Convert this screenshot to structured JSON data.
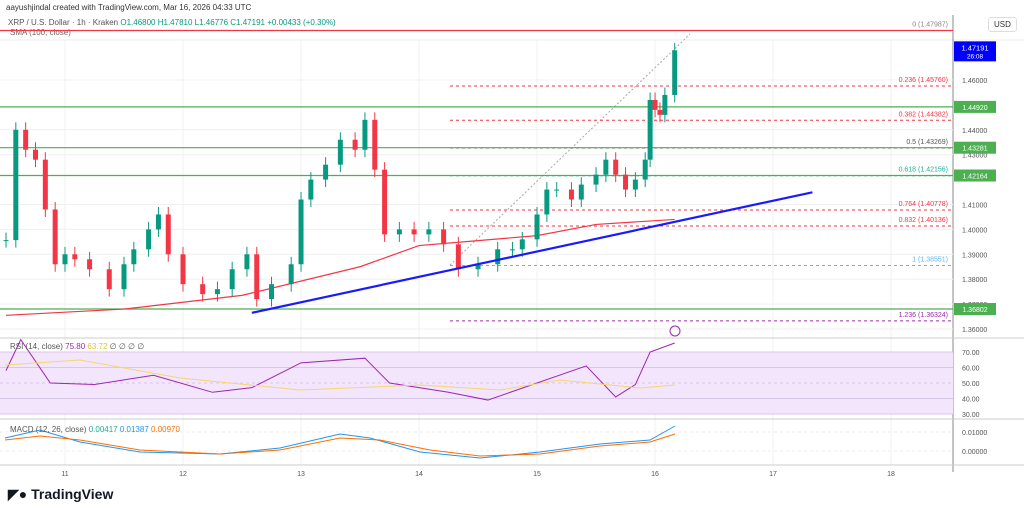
{
  "header": {
    "credit": "aayushjindal created with TradingView.com, Mar 16, 2026 04:33 UTC",
    "symbol": "XRP / U.S. Dollar · 1h · Kraken",
    "o": "O1.46800",
    "h": "H1.47810",
    "l": "L1.46776",
    "c": "C1.47191",
    "chg": "+0.00433 (+0.30%)",
    "sma": "SMA (100, close)"
  },
  "currency": "USD",
  "price_label": {
    "value": "1.47191",
    "countdown": "26:08",
    "color": "#0000ff"
  },
  "levels": [
    {
      "value": "1.44920",
      "price": 1.4492
    },
    {
      "value": "1.43281",
      "price": 1.43281
    },
    {
      "value": "1.42164",
      "price": 1.42164
    },
    {
      "value": "1.36802",
      "price": 1.36802
    }
  ],
  "fib": [
    {
      "label": "0 (1.47987)",
      "price": 1.47987,
      "color": "#888888"
    },
    {
      "label": "0.236 (1.45760)",
      "price": 1.4576,
      "color": "#f23645"
    },
    {
      "label": "0.382 (1.44382)",
      "price": 1.44382,
      "color": "#f23645"
    },
    {
      "label": "0.5 (1.43269)",
      "price": 1.43269,
      "color": "#555555"
    },
    {
      "label": "0.618 (1.42156)",
      "price": 1.42156,
      "color": "#22ab94"
    },
    {
      "label": "0.764 (1.40778)",
      "price": 1.40778,
      "color": "#f23645"
    },
    {
      "label": "0.832 (1.40136)",
      "price": 1.40136,
      "color": "#f23645"
    },
    {
      "label": "1 (1.38551)",
      "price": 1.38551,
      "color": "#64b5f6"
    },
    {
      "label": "1.236 (1.36324)",
      "price": 1.36324,
      "color": "#9c27b0"
    }
  ],
  "price_ticks": [
    "1.46000",
    "1.44000",
    "1.43000",
    "1.41000",
    "1.40000",
    "1.39000",
    "1.38000",
    "1.37000",
    "1.36000"
  ],
  "rsi": {
    "label": "RSI (14, close)",
    "v1": "75.80",
    "v2": "63.72",
    "nulls": "∅ ∅ ∅ ∅",
    "ticks": [
      "70.00",
      "60.00",
      "50.00",
      "40.00",
      "30.00"
    ]
  },
  "macd": {
    "label": "MACD (12, 26, close)",
    "v1": "0.00417",
    "v2": "0.01387",
    "v3": "0.00970",
    "ticks": [
      "0.01000",
      "0.00000"
    ]
  },
  "time_ticks": [
    "11",
    "12",
    "13",
    "14",
    "15",
    "16",
    "17",
    "18"
  ],
  "logo": "TradingView",
  "chart_data": {
    "type": "candlestick",
    "ylim": [
      1.355,
      1.485
    ],
    "x": [
      "Mar10 12:00",
      "Mar10 14:00",
      "Mar10 16:00",
      "Mar10 18:00",
      "Mar10 20:00",
      "Mar10 22:00",
      "Mar11 00:00",
      "Mar11 02:00",
      "Mar11 05:00",
      "Mar11 09:00",
      "Mar11 12:00",
      "Mar11 14:00",
      "Mar11 17:00",
      "Mar11 19:00",
      "Mar11 21:00",
      "Mar12 00:00",
      "Mar12 04:00",
      "Mar12 07:00",
      "Mar12 10:00",
      "Mar12 13:00",
      "Mar12 15:00",
      "Mar12 18:00",
      "Mar12 22:00",
      "Mar13 00:00",
      "Mar13 02:00",
      "Mar13 05:00",
      "Mar13 08:00",
      "Mar13 11:00",
      "Mar13 13:00",
      "Mar13 15:00",
      "Mar13 17:00",
      "Mar13 20:00",
      "Mar13 23:00",
      "Mar14 02:00",
      "Mar14 05:00",
      "Mar14 08:00",
      "Mar14 12:00",
      "Mar14 16:00",
      "Mar14 19:00",
      "Mar14 21:00",
      "Mar15 00:00",
      "Mar15 02:00",
      "Mar15 04:00",
      "Mar15 07:00",
      "Mar15 09:00",
      "Mar15 12:00",
      "Mar15 14:00",
      "Mar15 16:00",
      "Mar15 18:00",
      "Mar15 20:00",
      "Mar15 22:00",
      "Mar15 23:00",
      "Mar16 00:00",
      "Mar16 01:00",
      "Mar16 02:00",
      "Mar16 04:00"
    ],
    "close": [
      1.3957,
      1.44,
      1.432,
      1.428,
      1.408,
      1.386,
      1.39,
      1.388,
      1.384,
      1.376,
      1.386,
      1.392,
      1.4,
      1.406,
      1.39,
      1.378,
      1.374,
      1.376,
      1.384,
      1.39,
      1.372,
      1.378,
      1.386,
      1.412,
      1.42,
      1.426,
      1.436,
      1.432,
      1.444,
      1.424,
      1.398,
      1.4,
      1.398,
      1.4,
      1.394,
      1.384,
      1.386,
      1.392,
      1.392,
      1.396,
      1.406,
      1.416,
      1.416,
      1.412,
      1.418,
      1.422,
      1.428,
      1.422,
      1.416,
      1.42,
      1.428,
      1.452,
      1.448,
      1.446,
      1.454,
      1.47191
    ],
    "sma100": {
      "x": [
        "Mar10 12:00",
        "Mar11 12:00",
        "Mar12 12:00",
        "Mar13 12:00",
        "Mar14 00:00",
        "Mar14 12:00",
        "Mar15 00:00",
        "Mar15 12:00",
        "Mar16 04:00"
      ],
      "values": [
        1.3655,
        1.368,
        1.3735,
        1.385,
        1.3935,
        1.3955,
        1.3975,
        1.402,
        1.404
      ]
    },
    "trendline": {
      "from": [
        "Mar12 14:00",
        1.3665
      ],
      "to": [
        "Mar17 08:00",
        1.4149
      ]
    },
    "rsi": {
      "x": [
        "Mar10 12:00",
        "Mar10 15:00",
        "Mar10 21:00",
        "Mar11 06:00",
        "Mar11 18:00",
        "Mar12 06:00",
        "Mar12 14:00",
        "Mar13 00:00",
        "Mar13 13:00",
        "Mar13 18:00",
        "Mar14 06:00",
        "Mar14 14:00",
        "Mar15 00:00",
        "Mar15 10:00",
        "Mar15 16:00",
        "Mar15 20:00",
        "Mar15 23:00",
        "Mar16 04:00"
      ],
      "values": [
        58,
        78,
        50,
        49,
        55,
        44,
        47,
        63,
        66,
        50,
        44,
        39,
        50,
        61,
        41,
        49,
        70,
        75.8
      ]
    }
  }
}
